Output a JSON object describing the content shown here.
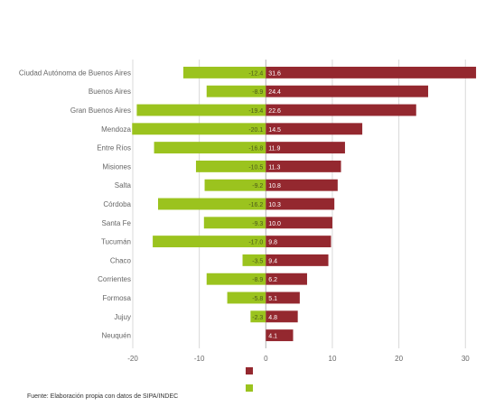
{
  "chart_data": {
    "type": "bar",
    "title": "",
    "xlim": [
      -20,
      32
    ],
    "x_ticks": [
      "-20",
      "-10",
      "0",
      "10",
      "20",
      "30"
    ],
    "categories": [
      "Ciudad Autónoma de Buenos Aires",
      "Buenos Aires",
      "Gran Buenos Aires",
      "Mendoza",
      "Entre Ríos",
      "Misiones",
      "Salta",
      "Córdoba",
      "Santa Fe",
      "Tucumán",
      "Chaco",
      "Corrientes",
      "Formosa",
      "Jujuy",
      "Neuquén"
    ],
    "series": [
      {
        "name": "",
        "color": "#9bc31e",
        "values": [
          -12.4,
          -8.9,
          -19.4,
          -20.1,
          -16.8,
          -10.5,
          -9.2,
          -16.2,
          -9.3,
          -17.0,
          -3.5,
          -8.9,
          -5.8,
          -2.3,
          0.0
        ]
      },
      {
        "name": "",
        "color": "#94282f",
        "values": [
          31.6,
          24.4,
          22.6,
          14.5,
          11.9,
          11.3,
          10.8,
          10.3,
          10.0,
          9.8,
          9.4,
          6.2,
          5.1,
          4.8,
          4.1
        ]
      }
    ],
    "legend": {
      "position": "bottom-right",
      "entries": [
        "",
        ""
      ]
    }
  },
  "source": {
    "text": "Fuente: Elaboración propia con datos de SIPA/INDEC"
  }
}
